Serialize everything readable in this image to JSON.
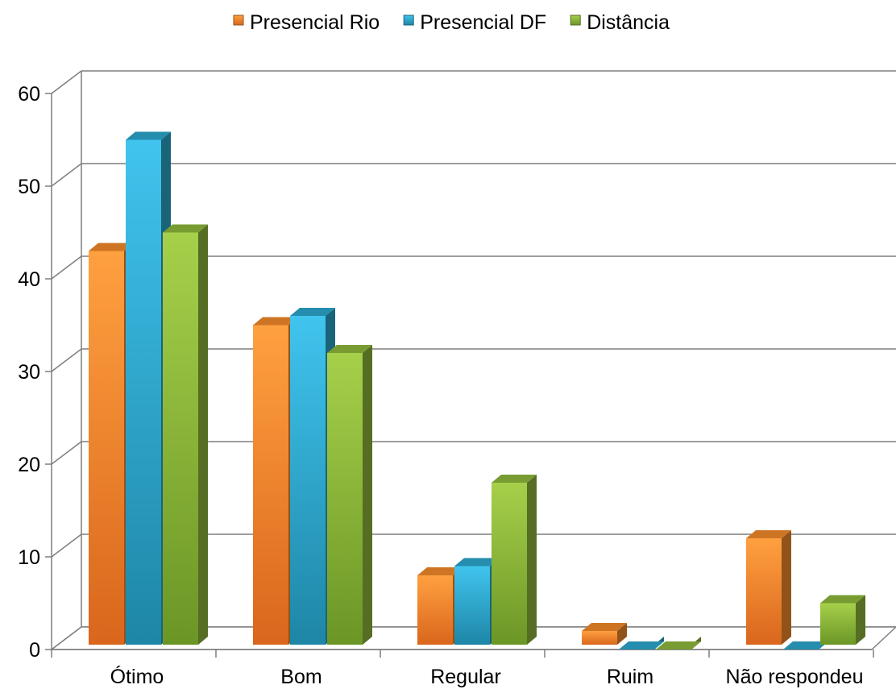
{
  "chart_data": {
    "type": "bar",
    "title": "",
    "xlabel": "",
    "ylabel": "",
    "categories": [
      "Ótimo",
      "Bom",
      "Regular",
      "Ruim",
      "Não respondeu"
    ],
    "series": [
      {
        "name": "Presencial Rio",
        "values": [
          43,
          35,
          8,
          2,
          12
        ],
        "color": "#F28A2A"
      },
      {
        "name": "Presencial DF",
        "values": [
          55,
          36,
          9,
          0,
          0
        ],
        "color": "#2BA6CB"
      },
      {
        "name": "Distância",
        "values": [
          45,
          32,
          18,
          0,
          5
        ],
        "color": "#8DB83A"
      }
    ],
    "ylim": [
      0,
      60
    ],
    "yticks": [
      0,
      10,
      20,
      30,
      40,
      50,
      60
    ],
    "grid": true,
    "legend": "top-center",
    "style": "3d-column"
  }
}
